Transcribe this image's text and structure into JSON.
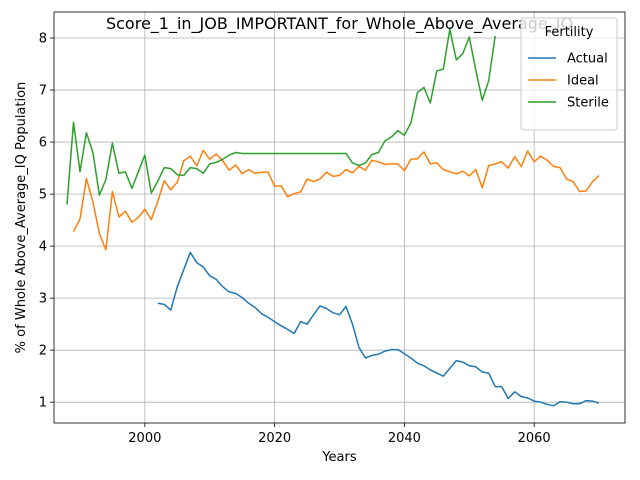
{
  "chart_data": {
    "type": "line",
    "title": "Score_1_in_JOB_IMPORTANT_for_Whole_Above_Average_IQ",
    "xlabel": "Years",
    "ylabel": "% of Whole Above_Average_IQ Population",
    "xlim": [
      1986,
      2074
    ],
    "ylim": [
      0.6,
      8.5
    ],
    "xticks": [
      2000,
      2020,
      2040,
      2060
    ],
    "yticks": [
      1,
      2,
      3,
      4,
      5,
      6,
      7,
      8
    ],
    "grid": true,
    "legend": {
      "title": "Fertility",
      "position": "top-right"
    },
    "series": [
      {
        "name": "Actual",
        "color": "#1f77b4",
        "x": [
          2002,
          2003,
          2004,
          2005,
          2006,
          2007,
          2008,
          2009,
          2010,
          2011,
          2012,
          2013,
          2014,
          2015,
          2016,
          2017,
          2018,
          2019,
          2020,
          2021,
          2022,
          2023,
          2024,
          2025,
          2026,
          2027,
          2028,
          2029,
          2030,
          2031,
          2032,
          2033,
          2034,
          2035,
          2036,
          2037,
          2038,
          2039,
          2040,
          2041,
          2042,
          2043,
          2044,
          2045,
          2046,
          2047,
          2048,
          2049,
          2050,
          2051,
          2052,
          2053,
          2054,
          2055,
          2056,
          2057,
          2058,
          2059,
          2060,
          2061,
          2062,
          2063,
          2064,
          2065,
          2066,
          2067,
          2068,
          2069,
          2070
        ],
        "values": [
          2.9,
          2.88,
          2.77,
          3.22,
          3.55,
          3.88,
          3.68,
          3.6,
          3.43,
          3.36,
          3.22,
          3.12,
          3.09,
          3.01,
          2.9,
          2.82,
          2.7,
          2.63,
          2.55,
          2.47,
          2.4,
          2.32,
          2.55,
          2.5,
          2.68,
          2.85,
          2.8,
          2.72,
          2.68,
          2.84,
          2.5,
          2.05,
          1.85,
          1.9,
          1.92,
          1.98,
          2.01,
          2.01,
          1.93,
          1.85,
          1.75,
          1.7,
          1.62,
          1.56,
          1.5,
          1.65,
          1.8,
          1.77,
          1.7,
          1.68,
          1.58,
          1.56,
          1.3,
          1.3,
          1.07,
          1.2,
          1.11,
          1.08,
          1.02,
          1.0,
          0.96,
          0.93,
          1.01,
          1.0,
          0.97,
          0.97,
          1.03,
          1.02,
          0.98
        ]
      },
      {
        "name": "Ideal",
        "color": "#ff7f0e",
        "x": [
          1989,
          1990,
          1991,
          1992,
          1993,
          1994,
          1995,
          1996,
          1997,
          1998,
          1999,
          2000,
          2001,
          2002,
          2003,
          2004,
          2005,
          2006,
          2007,
          2008,
          2009,
          2010,
          2011,
          2012,
          2013,
          2014,
          2015,
          2016,
          2017,
          2018,
          2019,
          2020,
          2021,
          2022,
          2023,
          2024,
          2025,
          2026,
          2027,
          2028,
          2029,
          2030,
          2031,
          2032,
          2033,
          2034,
          2035,
          2036,
          2037,
          2038,
          2039,
          2040,
          2041,
          2042,
          2043,
          2044,
          2045,
          2046,
          2047,
          2048,
          2049,
          2050,
          2051,
          2052,
          2053,
          2054,
          2055,
          2056,
          2057,
          2058,
          2059,
          2060,
          2061,
          2062,
          2063,
          2064,
          2065,
          2066,
          2067,
          2068,
          2069,
          2070
        ],
        "values": [
          4.28,
          4.52,
          5.3,
          4.85,
          4.24,
          3.93,
          5.05,
          4.56,
          4.67,
          4.46,
          4.55,
          4.71,
          4.51,
          4.86,
          5.26,
          5.08,
          5.23,
          5.64,
          5.73,
          5.54,
          5.84,
          5.67,
          5.77,
          5.64,
          5.46,
          5.56,
          5.39,
          5.47,
          5.4,
          5.42,
          5.42,
          5.15,
          5.16,
          4.95,
          5.01,
          5.04,
          5.29,
          5.24,
          5.29,
          5.42,
          5.34,
          5.36,
          5.47,
          5.41,
          5.53,
          5.46,
          5.65,
          5.62,
          5.57,
          5.58,
          5.58,
          5.45,
          5.67,
          5.68,
          5.81,
          5.58,
          5.6,
          5.47,
          5.43,
          5.39,
          5.44,
          5.35,
          5.47,
          5.12,
          5.55,
          5.58,
          5.62,
          5.5,
          5.72,
          5.53,
          5.83,
          5.62,
          5.73,
          5.65,
          5.53,
          5.51,
          5.29,
          5.24,
          5.05,
          5.06,
          5.24,
          5.36
        ]
      },
      {
        "name": "Sterile",
        "color": "#2ca02c",
        "x": [
          1988,
          1989,
          1990,
          1991,
          1992,
          1993,
          1994,
          1995,
          1996,
          1997,
          1998,
          1999,
          2000,
          2001,
          2002,
          2003,
          2004,
          2005,
          2006,
          2007,
          2008,
          2009,
          2010,
          2011,
          2012,
          2013,
          2014,
          2015,
          2016,
          2017,
          2018,
          2019,
          2020,
          2021,
          2022,
          2023,
          2024,
          2025,
          2026,
          2027,
          2028,
          2029,
          2030,
          2031,
          2032,
          2033,
          2034,
          2035,
          2036,
          2037,
          2038,
          2039,
          2040,
          2041,
          2042,
          2043,
          2044,
          2045,
          2046,
          2047,
          2048,
          2049,
          2050,
          2051,
          2052,
          2053,
          2054
        ],
        "values": [
          4.8,
          6.38,
          5.43,
          6.18,
          5.8,
          4.98,
          5.28,
          5.98,
          5.4,
          5.43,
          5.11,
          5.43,
          5.75,
          5.02,
          5.25,
          5.51,
          5.49,
          5.37,
          5.36,
          5.51,
          5.49,
          5.4,
          5.58,
          5.61,
          5.67,
          5.75,
          5.8,
          5.78,
          5.78,
          5.78,
          5.78,
          5.78,
          5.78,
          5.78,
          5.78,
          5.78,
          5.78,
          5.78,
          5.78,
          5.78,
          5.78,
          5.78,
          5.78,
          5.78,
          5.6,
          5.55,
          5.6,
          5.76,
          5.8,
          6.02,
          6.1,
          6.22,
          6.13,
          6.37,
          6.95,
          7.05,
          6.75,
          7.37,
          7.4,
          8.17,
          7.58,
          7.7,
          8.02,
          7.38,
          6.8,
          7.18,
          8.04
        ]
      }
    ]
  }
}
